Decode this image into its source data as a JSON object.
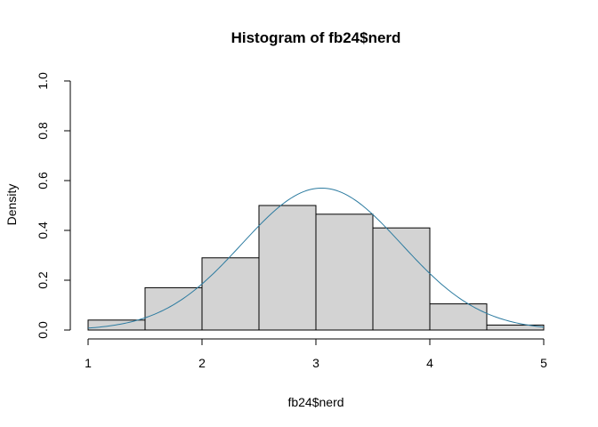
{
  "chart_data": {
    "type": "bar",
    "title": "Histogram of fb24$nerd",
    "xlabel": "fb24$nerd",
    "ylabel": "Density",
    "xlim": [
      1,
      5
    ],
    "ylim": [
      0,
      1.0
    ],
    "x_ticks": [
      "1",
      "2",
      "3",
      "4",
      "5"
    ],
    "y_ticks": [
      "0.0",
      "0.2",
      "0.4",
      "0.6",
      "0.8",
      "1.0"
    ],
    "bins": [
      {
        "x0": 1.0,
        "x1": 1.5,
        "density": 0.04
      },
      {
        "x0": 1.5,
        "x1": 2.0,
        "density": 0.17
      },
      {
        "x0": 2.0,
        "x1": 2.5,
        "density": 0.29
      },
      {
        "x0": 2.5,
        "x1": 3.0,
        "density": 0.5
      },
      {
        "x0": 3.0,
        "x1": 3.5,
        "density": 0.465
      },
      {
        "x0": 3.5,
        "x1": 4.0,
        "density": 0.41
      },
      {
        "x0": 4.0,
        "x1": 4.5,
        "density": 0.105
      },
      {
        "x0": 4.5,
        "x1": 5.0,
        "density": 0.02
      }
    ],
    "density_curve": {
      "type": "normal",
      "mean": 3.05,
      "sd": 0.7,
      "color": "#2C7BA0"
    },
    "bar_fill": "#D3D3D3",
    "bar_stroke": "#000000",
    "grid": false
  }
}
